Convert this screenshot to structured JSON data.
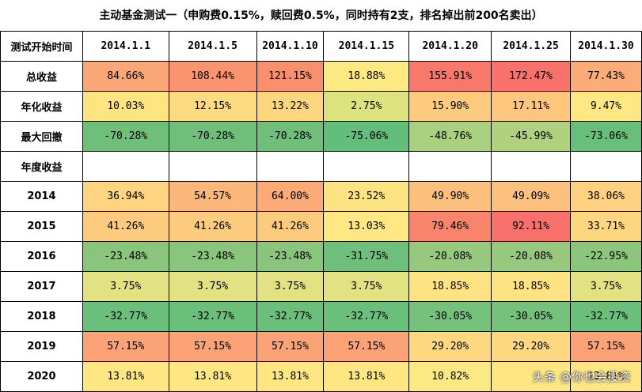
{
  "title": "主动基金测试一（申购费0.15%，赎回费0.5%，同时持有2支，排名掉出前200名卖出）",
  "header": {
    "label": "测试开始时间",
    "dates": [
      "2014.1.1",
      "2014.1.5",
      "2014.1.10",
      "2014.1.15",
      "2014.1.20",
      "2014.1.25",
      "2014.1.30"
    ]
  },
  "rows": [
    {
      "label": "总收益",
      "values": [
        "84.66%",
        "108.44%",
        "121.15%",
        "18.88%",
        "155.91%",
        "172.47%",
        "77.43%"
      ],
      "colors": [
        "#fba677",
        "#fa9470",
        "#f98f6d",
        "#fde982",
        "#f8796b",
        "#f8726b",
        "#fcac79"
      ]
    },
    {
      "label": "年化收益",
      "values": [
        "10.03%",
        "12.15%",
        "13.22%",
        "2.75%",
        "15.90%",
        "17.11%",
        "9.47%"
      ],
      "colors": [
        "#ffe582",
        "#fedb81",
        "#fed680",
        "#dce27e",
        "#fdcb7e",
        "#fdc67d",
        "#ffe883"
      ]
    },
    {
      "label": "最大回撤",
      "values": [
        "-70.28%",
        "-70.28%",
        "-70.28%",
        "-75.06%",
        "-48.76%",
        "-45.99%",
        "-73.06%"
      ],
      "colors": [
        "#6fbf7b",
        "#6fbf7b",
        "#6fbf7b",
        "#63be7b",
        "#a8d07f",
        "#b0d27f",
        "#68bf7b"
      ]
    },
    {
      "label": "年度收益",
      "values": [
        "",
        "",
        "",
        "",
        "",
        "",
        ""
      ],
      "colors": [
        "#ffffff",
        "#ffffff",
        "#ffffff",
        "#ffffff",
        "#ffffff",
        "#ffffff",
        "#ffffff"
      ]
    },
    {
      "label": "2014",
      "values": [
        "36.94%",
        "54.57%",
        "64.00%",
        "23.52%",
        "49.90%",
        "49.09%",
        "38.06%"
      ],
      "colors": [
        "#fed480",
        "#fcb87a",
        "#fcaa78",
        "#fee382",
        "#fcc07c",
        "#fcc17c",
        "#fed280"
      ]
    },
    {
      "label": "2015",
      "values": [
        "41.26%",
        "41.26%",
        "41.26%",
        "13.03%",
        "79.46%",
        "92.11%",
        "33.71%"
      ],
      "colors": [
        "#fdcb7e",
        "#fdcb7e",
        "#fdcb7e",
        "#ffe883",
        "#f8846c",
        "#f8706b",
        "#fed680"
      ]
    },
    {
      "label": "2016",
      "values": [
        "-23.48%",
        "-23.48%",
        "-23.48%",
        "-31.75%",
        "-20.08%",
        "-20.08%",
        "-22.95%"
      ],
      "colors": [
        "#8ac57d",
        "#8ac57d",
        "#8ac57d",
        "#6ebf7b",
        "#96c87e",
        "#96c87e",
        "#8cc67d"
      ]
    },
    {
      "label": "2017",
      "values": [
        "3.75%",
        "3.75%",
        "3.75%",
        "3.75%",
        "18.85%",
        "18.85%",
        "3.75%"
      ],
      "colors": [
        "#e2e282",
        "#e2e282",
        "#e2e282",
        "#e2e282",
        "#ffe282",
        "#ffe282",
        "#e2e282"
      ]
    },
    {
      "label": "2018",
      "values": [
        "-32.77%",
        "-32.77%",
        "-32.77%",
        "-32.77%",
        "-30.05%",
        "-30.05%",
        "-32.77%"
      ],
      "colors": [
        "#6abf7b",
        "#6abf7b",
        "#6abf7b",
        "#6abf7b",
        "#74c27c",
        "#74c27c",
        "#6abf7b"
      ]
    },
    {
      "label": "2019",
      "values": [
        "57.15%",
        "57.15%",
        "57.15%",
        "57.15%",
        "29.20%",
        "29.20%",
        "57.15%"
      ],
      "colors": [
        "#fba276",
        "#fba276",
        "#fba276",
        "#fba276",
        "#fdd880",
        "#fdd880",
        "#fba276"
      ]
    },
    {
      "label": "2020",
      "values": [
        "13.81%",
        "13.81%",
        "13.81%",
        "13.81%",
        "10.82%",
        "",
        "13.81%"
      ],
      "colors": [
        "#fee783",
        "#fee783",
        "#fee783",
        "#fee783",
        "#fbe983",
        "#fee783",
        "#fee783"
      ]
    }
  ],
  "watermark": "头条 @你也会投资"
}
